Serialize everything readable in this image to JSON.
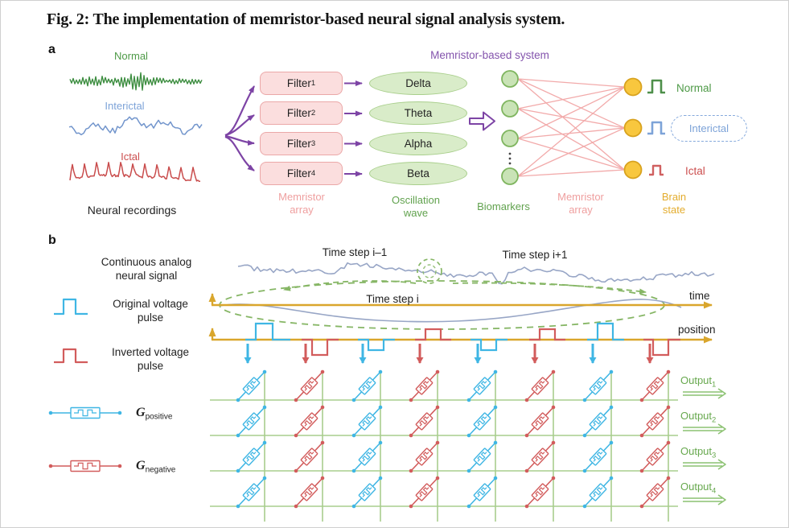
{
  "figure_title": "Fig. 2: The implementation of memristor-based neural signal analysis system.",
  "panel_a": {
    "label": "a",
    "recordings": {
      "normal": "Normal",
      "interictal": "Interictal",
      "ictal": "Ictal",
      "caption": "Neural recordings"
    },
    "filter_array": {
      "filters": [
        {
          "base": "Filter",
          "sub": "1"
        },
        {
          "base": "Filter",
          "sub": "2"
        },
        {
          "base": "Filter",
          "sub": "3"
        },
        {
          "base": "Filter",
          "sub": "4"
        }
      ],
      "caption": "Memristor array"
    },
    "oscillation": {
      "waves": [
        "Delta",
        "Theta",
        "Alpha",
        "Beta"
      ],
      "caption": "Oscillation wave"
    },
    "system_title": "Memristor-based system",
    "network": {
      "biomarkers_caption": "Biomarkers",
      "array_caption": "Memristor array",
      "brain_state_caption": "Brain state",
      "states": {
        "normal": "Normal",
        "interictal": "Interictal",
        "ictal": "Ictal"
      }
    }
  },
  "panel_b": {
    "label": "b",
    "legend": {
      "continuous": "Continuous analog neural signal",
      "original": "Original voltage pulse",
      "inverted": "Inverted voltage pulse",
      "g_positive": {
        "base": "G",
        "sub": "positive"
      },
      "g_negative": {
        "base": "G",
        "sub": "negative"
      }
    },
    "time_steps": {
      "prev": "Time step i–1",
      "current": "Time step i",
      "next": "Time step i+1"
    },
    "axis_labels": {
      "time": "time",
      "position": "position"
    },
    "outputs": [
      {
        "base": "Output",
        "sub": "1"
      },
      {
        "base": "Output",
        "sub": "2"
      },
      {
        "base": "Output",
        "sub": "3"
      },
      {
        "base": "Output",
        "sub": "4"
      }
    ],
    "crossbar": {
      "columns": 8,
      "rows": 4,
      "column_pattern": [
        "positive",
        "negative"
      ]
    }
  },
  "colors": {
    "purple": "#7d44a5",
    "pink_stroke": "#eba8a8",
    "pink_text": "#ef9f9f",
    "mesh_pink": "#f2aaaa",
    "node_fill": "#c9e3b6",
    "node_stroke": "#7fb55f",
    "yellow_fill": "#f8c73e",
    "yellow_stroke": "#d8a21e",
    "blue": "#3fb6e4",
    "red": "#d25c5c",
    "label_green": "#4e8f4a",
    "label_blue": "#7da3d8",
    "label_red": "#d06060",
    "axis_gold": "#d9a62c",
    "grid_green": "#a8cd8d",
    "arrow_green": "#8cc272",
    "dash_green": "#86b665",
    "signal_gray": "#98a6c6",
    "eeg_green": "#3e8e41",
    "eeg_blue": "#7295cc",
    "eeg_red": "#c94c4c"
  }
}
